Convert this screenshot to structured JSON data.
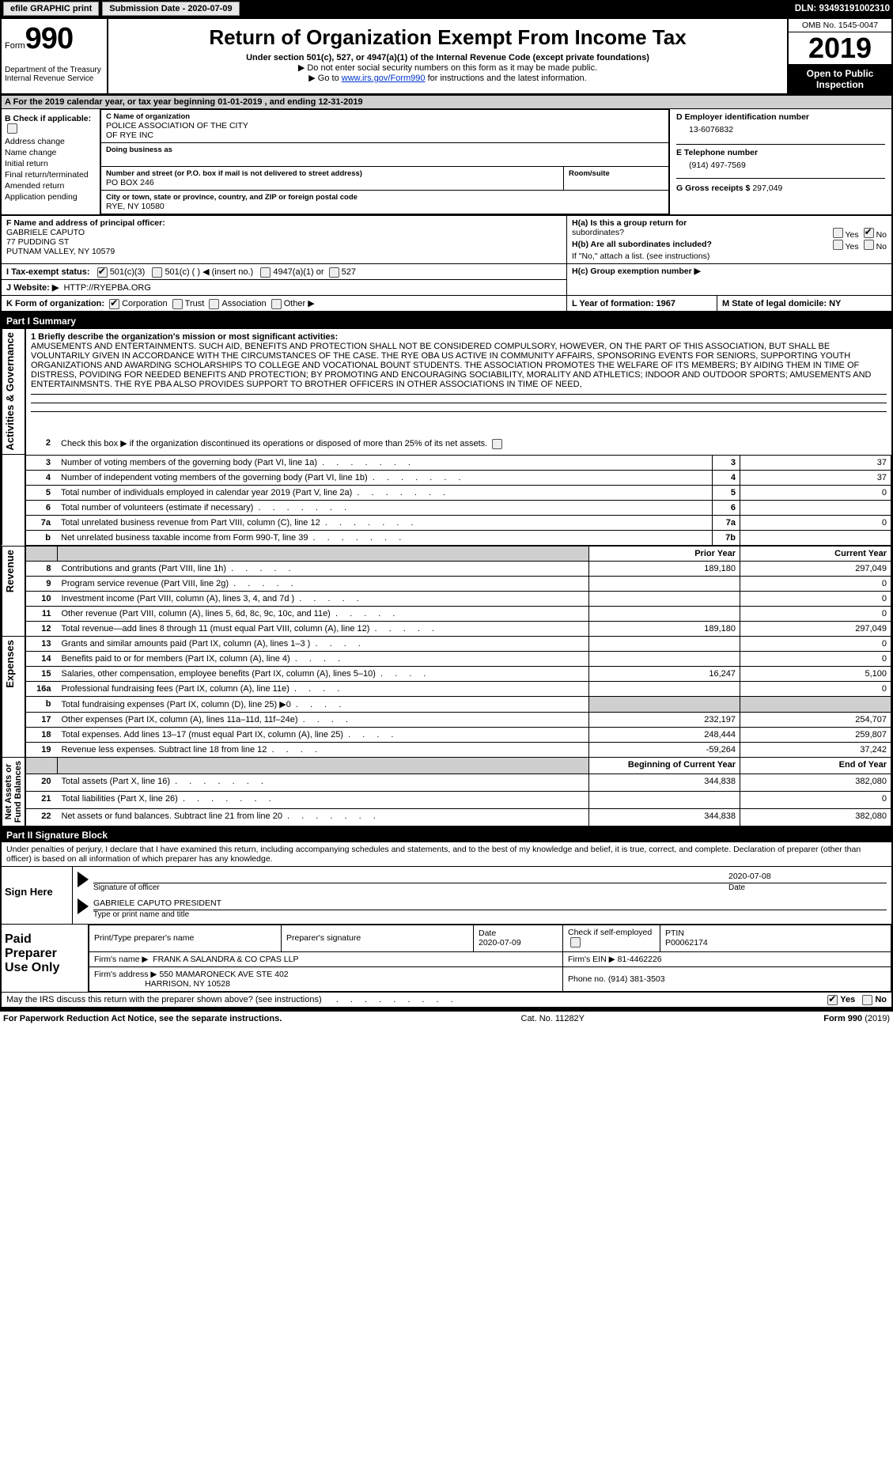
{
  "topbar": {
    "efile_label": "efile GRAPHIC print",
    "sub_date_label": "Submission Date - 2020-07-09",
    "dln_label": "DLN: 93493191002310"
  },
  "header": {
    "form_prefix": "Form",
    "form_number": "990",
    "dept1": "Department of the Treasury",
    "dept2": "Internal Revenue Service",
    "title": "Return of Organization Exempt From Income Tax",
    "subtitle": "Under section 501(c), 527, or 4947(a)(1) of the Internal Revenue Code (except private foundations)",
    "warn1": "▶ Do not enter social security numbers on this form as it may be made public.",
    "warn2_prefix": "▶ Go to ",
    "warn2_link": "www.irs.gov/Form990",
    "warn2_suffix": " for instructions and the latest information.",
    "omb": "OMB No. 1545-0047",
    "year": "2019",
    "open1": "Open to Public",
    "open2": "Inspection"
  },
  "row_a": "A   For the 2019 calendar year, or tax year beginning 01-01-2019        , and ending 12-31-2019",
  "col_b": {
    "header": "B Check if applicable:",
    "addr_change": "Address change",
    "name_change": "Name change",
    "initial": "Initial return",
    "final": "Final return/terminated",
    "amended": "Amended return",
    "pending": "Application pending"
  },
  "col_c": {
    "name_lbl": "C Name of organization",
    "name1": "POLICE ASSOCIATION OF THE CITY",
    "name2": "OF RYE INC",
    "dba_lbl": "Doing business as",
    "addr_lbl": "Number and street (or P.O. box if mail is not delivered to street address)",
    "addr": "PO BOX 246",
    "room_lbl": "Room/suite",
    "city_lbl": "City or town, state or province, country, and ZIP or foreign postal code",
    "city": "RYE, NY   10580",
    "f_lbl": "F Name and address of principal officer:",
    "f_name": "GABRIELE CAPUTO",
    "f_addr1": "77 PUDDING ST",
    "f_addr2": "PUTNAM VALLEY, NY   10579"
  },
  "col_d": {
    "ein_lbl": "D Employer identification number",
    "ein": "13-6076832",
    "tel_lbl": "E Telephone number",
    "tel": "(914) 497-7569",
    "gross_lbl": "G Gross receipts $",
    "gross": "297,049"
  },
  "row_h": {
    "ha": "H(a)   Is this a group return for",
    "ha2": "subordinates?",
    "hb": "H(b)   Are all subordinates included?",
    "hb_note": "If \"No,\" attach a list. (see instructions)",
    "hc": "H(c)   Group exemption number ▶",
    "yes": "Yes",
    "no": "No"
  },
  "row_i": {
    "label": "I    Tax-exempt status:",
    "o1": "501(c)(3)",
    "o2": "501(c) (  ) ◀ (insert no.)",
    "o3": "4947(a)(1) or",
    "o4": "527"
  },
  "row_j": {
    "label": "J    Website: ▶",
    "url": "HTTP://RYEPBA.ORG"
  },
  "row_k": {
    "label": "K Form of organization:",
    "corp": "Corporation",
    "trust": "Trust",
    "assoc": "Association",
    "other": "Other ▶",
    "l_label": "L Year of formation: 1967",
    "m_label": "M State of legal domicile: NY"
  },
  "part1": {
    "header": "Part I        Summary",
    "line1_lbl": "1   Briefly describe the organization's mission or most significant activities:",
    "mission": "AMUSEMENTS AND ENTERTAINMENTS. SUCH AID, BENEFITS AND PROTECTION SHALL NOT BE CONSIDERED COMPULSORY, HOWEVER, ON THE PART OF THIS ASSOCIATION, BUT SHALL BE VOLUNTARILY GIVEN IN ACCORDANCE WITH THE CIRCUMSTANCES OF THE CASE. THE RYE OBA US ACTIVE IN COMMUNITY AFFAIRS, SPONSORING EVENTS FOR SENIORS, SUPPORTING YOUTH ORGANIZATIONS AND AWARDING SCHOLARSHIPS TO COLLEGE AND VOCATIONAL BOUNT STUDENTS. THE ASSOCIATION PROMOTES THE WELFARE OF ITS MEMBERS; BY AIDING THEM IN TIME OF DISTRESS, POVIDING FOR NEEDED BENEFITS AND PROTECTION; BY PROMOTING AND ENCOURAGING SOCIABILITY, MORALITY AND ATHLETICS; INDOOR AND OUTDOOR SPORTS; AMUSEMENTS AND ENTERTAINMSNTS. THE RYE PBA ALSO PROVIDES SUPPORT TO BROTHER OFFICERS IN OTHER ASSOCIATIONS IN TIME OF NEED,",
    "line2": "Check this box ▶        if the organization discontinued its operations or disposed of more than 25% of its net assets.",
    "sidetabs": {
      "gov": "Activities & Governance",
      "rev": "Revenue",
      "exp": "Expenses",
      "net": "Net Assets or\nFund Balances"
    },
    "rows": [
      {
        "n": "3",
        "desc": "Number of voting members of the governing body (Part VI, line 1a)",
        "box": "3",
        "val": "37"
      },
      {
        "n": "4",
        "desc": "Number of independent voting members of the governing body (Part VI, line 1b)",
        "box": "4",
        "val": "37"
      },
      {
        "n": "5",
        "desc": "Total number of individuals employed in calendar year 2019 (Part V, line 2a)",
        "box": "5",
        "val": "0"
      },
      {
        "n": "6",
        "desc": "Total number of volunteers (estimate if necessary)",
        "box": "6",
        "val": ""
      },
      {
        "n": "7a",
        "desc": "Total unrelated business revenue from Part VIII, column (C), line 12",
        "box": "7a",
        "val": "0"
      },
      {
        "n": "b",
        "desc": "Net unrelated business taxable income from Form 990-T, line 39",
        "box": "7b",
        "val": ""
      }
    ],
    "prior_hdr": "Prior Year",
    "curr_hdr": "Current Year",
    "fin_rows": [
      {
        "n": "8",
        "desc": "Contributions and grants (Part VIII, line 1h)",
        "prior": "189,180",
        "curr": "297,049"
      },
      {
        "n": "9",
        "desc": "Program service revenue (Part VIII, line 2g)",
        "prior": "",
        "curr": "0"
      },
      {
        "n": "10",
        "desc": "Investment income (Part VIII, column (A), lines 3, 4, and 7d )",
        "prior": "",
        "curr": "0"
      },
      {
        "n": "11",
        "desc": "Other revenue (Part VIII, column (A), lines 5, 6d, 8c, 9c, 10c, and 11e)",
        "prior": "",
        "curr": "0"
      },
      {
        "n": "12",
        "desc": "Total revenue—add lines 8 through 11 (must equal Part VIII, column (A), line 12)",
        "prior": "189,180",
        "curr": "297,049"
      },
      {
        "n": "13",
        "desc": "Grants and similar amounts paid (Part IX, column (A), lines 1–3 )",
        "prior": "",
        "curr": "0"
      },
      {
        "n": "14",
        "desc": "Benefits paid to or for members (Part IX, column (A), line 4)",
        "prior": "",
        "curr": "0"
      },
      {
        "n": "15",
        "desc": "Salaries, other compensation, employee benefits (Part IX, column (A), lines 5–10)",
        "prior": "16,247",
        "curr": "5,100"
      },
      {
        "n": "16a",
        "desc": "Professional fundraising fees (Part IX, column (A), line 11e)",
        "prior": "",
        "curr": "0"
      },
      {
        "n": "b",
        "desc": "Total fundraising expenses (Part IX, column (D), line 25) ▶0",
        "prior": "GRAY",
        "curr": "GRAY"
      },
      {
        "n": "17",
        "desc": "Other expenses (Part IX, column (A), lines 11a–11d, 11f–24e)",
        "prior": "232,197",
        "curr": "254,707"
      },
      {
        "n": "18",
        "desc": "Total expenses. Add lines 13–17 (must equal Part IX, column (A), line 25)",
        "prior": "248,444",
        "curr": "259,807"
      },
      {
        "n": "19",
        "desc": "Revenue less expenses. Subtract line 18 from line 12",
        "prior": "-59,264",
        "curr": "37,242"
      }
    ],
    "begin_hdr": "Beginning of Current Year",
    "end_hdr": "End of Year",
    "net_rows": [
      {
        "n": "20",
        "desc": "Total assets (Part X, line 16)",
        "prior": "344,838",
        "curr": "382,080"
      },
      {
        "n": "21",
        "desc": "Total liabilities (Part X, line 26)",
        "prior": "",
        "curr": "0"
      },
      {
        "n": "22",
        "desc": "Net assets or fund balances. Subtract line 21 from line 20",
        "prior": "344,838",
        "curr": "382,080"
      }
    ]
  },
  "part2": {
    "header": "Part II       Signature Block",
    "penalties": "Under penalties of perjury, I declare that I have examined this return, including accompanying schedules and statements, and to the best of my knowledge and belief, it is true, correct, and complete. Declaration of preparer (other than officer) is based on all information of which preparer has any knowledge.",
    "sign_here": "Sign Here",
    "sig_officer_lbl": "Signature of officer",
    "date_lbl": "Date",
    "sig_date": "2020-07-08",
    "officer_name": "GABRIELE CAPUTO PRESIDENT",
    "type_name_lbl": "Type or print name and title",
    "paid_lbl": "Paid\nPreparer\nUse Only",
    "prep_name_lbl": "Print/Type preparer's name",
    "prep_sig_lbl": "Preparer's signature",
    "prep_date_lbl": "Date",
    "prep_date": "2020-07-09",
    "check_se": "Check         if self-employed",
    "ptin_lbl": "PTIN",
    "ptin": "P00062174",
    "firm_name_lbl": "Firm's name      ▶",
    "firm_name": "FRANK A SALANDRA & CO CPAS LLP",
    "firm_ein_lbl": "Firm's EIN ▶",
    "firm_ein": "81-4462226",
    "firm_addr_lbl": "Firm's address ▶",
    "firm_addr1": "550 MAMARONECK AVE STE 402",
    "firm_addr2": "HARRISON, NY   10528",
    "phone_lbl": "Phone no.",
    "phone": "(914) 381-3503",
    "may_irs": "May the IRS discuss this return with the preparer shown above? (see instructions)"
  },
  "footer": {
    "left": "For Paperwork Reduction Act Notice, see the separate instructions.",
    "mid": "Cat. No. 11282Y",
    "right": "Form 990 (2019)"
  }
}
